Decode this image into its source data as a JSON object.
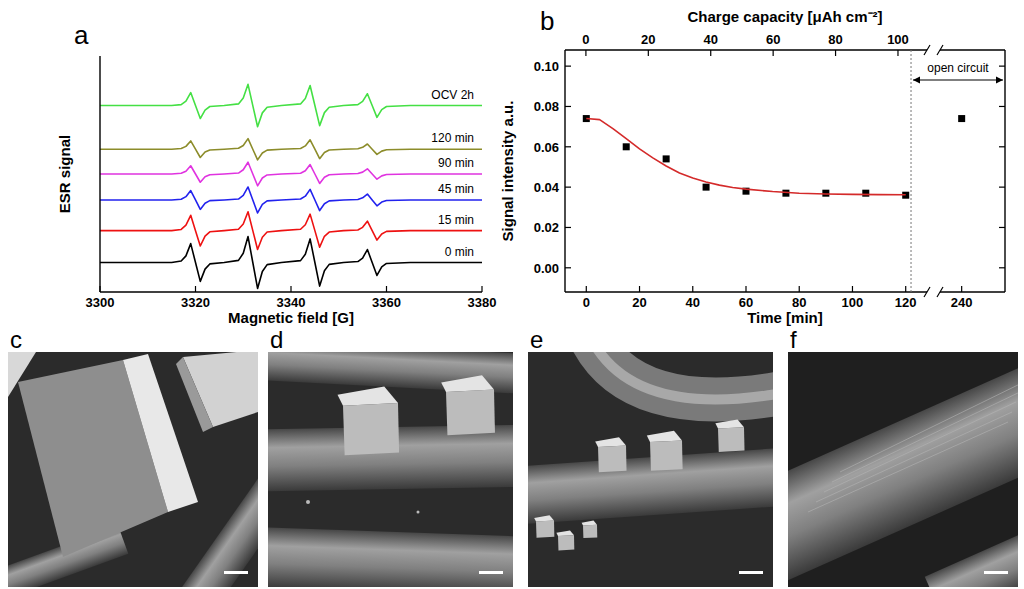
{
  "chart_data": [
    {
      "panel_label": "a",
      "type": "line",
      "xlabel": "Magnetic field [G]",
      "ylabel": "ESR signal",
      "xlim": [
        3300,
        3380
      ],
      "xticks": [
        3300,
        3320,
        3340,
        3360,
        3380
      ],
      "ylim": [
        0,
        10
      ],
      "tick_labels": "x",
      "x": [
        3300,
        3310,
        3315,
        3317,
        3318,
        3319,
        3320,
        3321,
        3322,
        3323,
        3326,
        3329,
        3330,
        3331,
        3332,
        3333,
        3334,
        3335,
        3338,
        3342,
        3343,
        3344,
        3345,
        3346,
        3347,
        3348,
        3351,
        3354,
        3355,
        3356,
        3357,
        3358,
        3359,
        3360,
        3365,
        3370,
        3380
      ],
      "series": [
        {
          "name": "0 min",
          "color": "#000000",
          "values": [
            1.25,
            1.25,
            1.25,
            1.31,
            1.53,
            2.05,
            1.25,
            0.45,
            0.97,
            1.19,
            1.25,
            1.34,
            1.64,
            2.35,
            1.25,
            0.15,
            0.87,
            1.16,
            1.25,
            1.33,
            1.6,
            2.25,
            1.25,
            0.25,
            0.9,
            1.17,
            1.25,
            1.29,
            1.44,
            1.8,
            1.25,
            0.7,
            1.06,
            1.21,
            1.25,
            1.25,
            1.25
          ]
        },
        {
          "name": "15 min",
          "color": "#ee1111",
          "values": [
            2.6,
            2.6,
            2.6,
            2.65,
            2.83,
            3.25,
            2.6,
            1.95,
            2.37,
            2.55,
            2.6,
            2.66,
            2.88,
            3.4,
            2.6,
            1.8,
            2.32,
            2.54,
            2.6,
            2.66,
            2.85,
            3.3,
            2.6,
            1.9,
            2.36,
            2.54,
            2.6,
            2.63,
            2.74,
            3.0,
            2.6,
            2.2,
            2.46,
            2.57,
            2.6,
            2.6,
            2.6
          ]
        },
        {
          "name": "45 min",
          "color": "#2222ee",
          "values": [
            3.9,
            3.9,
            3.9,
            3.93,
            4.04,
            4.3,
            3.9,
            3.5,
            3.76,
            3.87,
            3.9,
            3.94,
            4.09,
            4.45,
            3.9,
            3.35,
            3.71,
            3.86,
            3.9,
            3.94,
            4.06,
            4.35,
            3.9,
            3.45,
            3.74,
            3.86,
            3.9,
            3.92,
            3.99,
            4.15,
            3.9,
            3.65,
            3.81,
            3.88,
            3.9,
            3.9,
            3.9
          ]
        },
        {
          "name": "90 min",
          "color": "#e033e0",
          "values": [
            5,
            5,
            5,
            5.03,
            5.12,
            5.35,
            5,
            4.65,
            4.88,
            4.97,
            5,
            5.04,
            5.18,
            5.5,
            5,
            4.5,
            4.83,
            4.96,
            5,
            5.03,
            5.14,
            5.4,
            5,
            4.6,
            4.86,
            4.97,
            5,
            5.02,
            5.08,
            5.22,
            5,
            4.78,
            4.92,
            4.98,
            5,
            5,
            5
          ]
        },
        {
          "name": "120 min",
          "color": "#8c8c2a",
          "values": [
            6.05,
            6.05,
            6.05,
            6.08,
            6.17,
            6.4,
            6.05,
            5.7,
            5.93,
            6.02,
            6.05,
            6.09,
            6.21,
            6.5,
            6.05,
            5.6,
            5.89,
            6.01,
            6.05,
            6.08,
            6.19,
            6.45,
            6.05,
            5.65,
            5.91,
            6.02,
            6.05,
            6.07,
            6.13,
            6.27,
            6.05,
            5.83,
            5.97,
            6.03,
            6.05,
            6.05,
            6.05
          ]
        },
        {
          "name": "OCV 2h",
          "color": "#44e044",
          "values": [
            7.9,
            7.9,
            7.9,
            7.94,
            8.09,
            8.45,
            7.9,
            7.35,
            7.71,
            7.86,
            7.9,
            7.97,
            8.22,
            8.8,
            7.9,
            7,
            7.59,
            7.83,
            7.9,
            7.97,
            8.2,
            8.75,
            7.9,
            7.05,
            7.6,
            7.83,
            7.9,
            7.94,
            8.08,
            8.4,
            7.9,
            7.4,
            7.73,
            7.86,
            7.9,
            7.9,
            7.9
          ]
        }
      ]
    },
    {
      "panel_label": "b",
      "type": "scatter",
      "xlabel": "Time [min]",
      "ylabel": "Signal intensity a.u.",
      "x2label": "Charge capacity [μAh cm⁻²]",
      "xlim": [
        -8,
        128
      ],
      "xticks": [
        0,
        20,
        40,
        60,
        80,
        100,
        120
      ],
      "x2lim": [
        -6.7,
        109.3
      ],
      "x2ticks": [
        0,
        20,
        40,
        60,
        80,
        100
      ],
      "ylim": [
        -0.012,
        0.108
      ],
      "yticks": [
        {
          "value": 0,
          "label": "0.00"
        },
        {
          "value": 0.02,
          "label": "0.02"
        },
        {
          "value": 0.04,
          "label": "0.04"
        },
        {
          "value": 0.06,
          "label": "0.06"
        },
        {
          "value": 0.08,
          "label": "0.08"
        },
        {
          "value": 0.1,
          "label": "0.10"
        }
      ],
      "annotations": [
        {
          "text": "open circuit",
          "x": 122
        }
      ],
      "series": [
        {
          "type": "scatter",
          "marker": "square",
          "color": "#000000",
          "x": [
            0,
            15,
            30,
            45,
            60,
            75,
            90,
            105,
            120
          ],
          "values": [
            0.074,
            0.06,
            0.054,
            0.04,
            0.038,
            0.037,
            0.037,
            0.037,
            0.036
          ]
        },
        {
          "type": "line",
          "color": "#d42a2a",
          "x": [
            0,
            5,
            10,
            15,
            20,
            25,
            30,
            35,
            40,
            45,
            50,
            55,
            60,
            70,
            80,
            90,
            100,
            110,
            120
          ],
          "values": [
            0.074,
            0.0735,
            0.069,
            0.064,
            0.059,
            0.0545,
            0.0505,
            0.047,
            0.0445,
            0.0425,
            0.041,
            0.0398,
            0.039,
            0.0378,
            0.037,
            0.0366,
            0.0364,
            0.0363,
            0.0362
          ]
        }
      ]
    },
    {
      "type": "scatter",
      "xlim": [
        232,
        256
      ],
      "xticks": [
        240
      ],
      "ylim": [
        -0.012,
        0.108
      ],
      "tick_labels": "x",
      "series": [
        {
          "type": "scatter",
          "marker": "square",
          "color": "#000000",
          "x": [
            240
          ],
          "values": [
            0.074
          ]
        }
      ]
    }
  ],
  "images": [
    {
      "panel_label": "c"
    },
    {
      "panel_label": "d"
    },
    {
      "panel_label": "e"
    },
    {
      "panel_label": "f"
    }
  ]
}
